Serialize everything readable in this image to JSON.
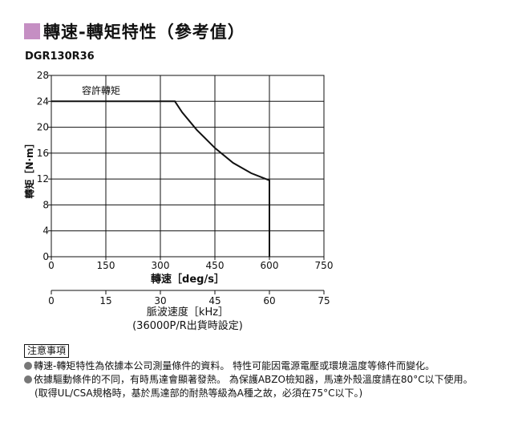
{
  "header": {
    "title": "轉速-轉矩特性（參考值）",
    "model": "DGR130R36"
  },
  "chart_data": {
    "type": "line",
    "x": [
      0,
      340,
      360,
      400,
      450,
      500,
      550,
      600,
      600
    ],
    "series": [
      {
        "name": "",
        "values": [
          24,
          24,
          22.3,
          19.6,
          16.8,
          14.5,
          12.9,
          11.8,
          0
        ]
      }
    ],
    "annotation": "容許轉矩",
    "xlabel": "轉速［deg/s］",
    "ylabel": "轉矩［N·m］",
    "xlim": [
      0,
      750
    ],
    "ylim": [
      0,
      28
    ],
    "xticks": [
      "0",
      "150",
      "300",
      "450",
      "600",
      "750"
    ],
    "yticks": [
      "0",
      "4",
      "8",
      "12",
      "16",
      "20",
      "24",
      "28"
    ],
    "grid": true,
    "secondary_axis": {
      "label_line1": "脈波速度［kHz］",
      "label_line2": "(36000P/R出貨時設定)",
      "ticks": [
        "0",
        "15",
        "30",
        "45",
        "60",
        "75"
      ],
      "range": [
        0,
        75
      ]
    }
  },
  "notes": {
    "heading": "注意事項",
    "items": [
      "轉速-轉矩特性為依據本公司測量條件的資料。 特性可能因電源電壓或環境溫度等條件而變化。",
      "依據驅動條件的不同，有時馬達會顯著發熱。 為保護ABZO檢知器，馬達外殼溫度請在80°C以下使用。"
    ],
    "sub": "(取得UL/CSA規格時，基於馬達部的耐熱等級為A種之故，必須在75°C以下。)"
  }
}
